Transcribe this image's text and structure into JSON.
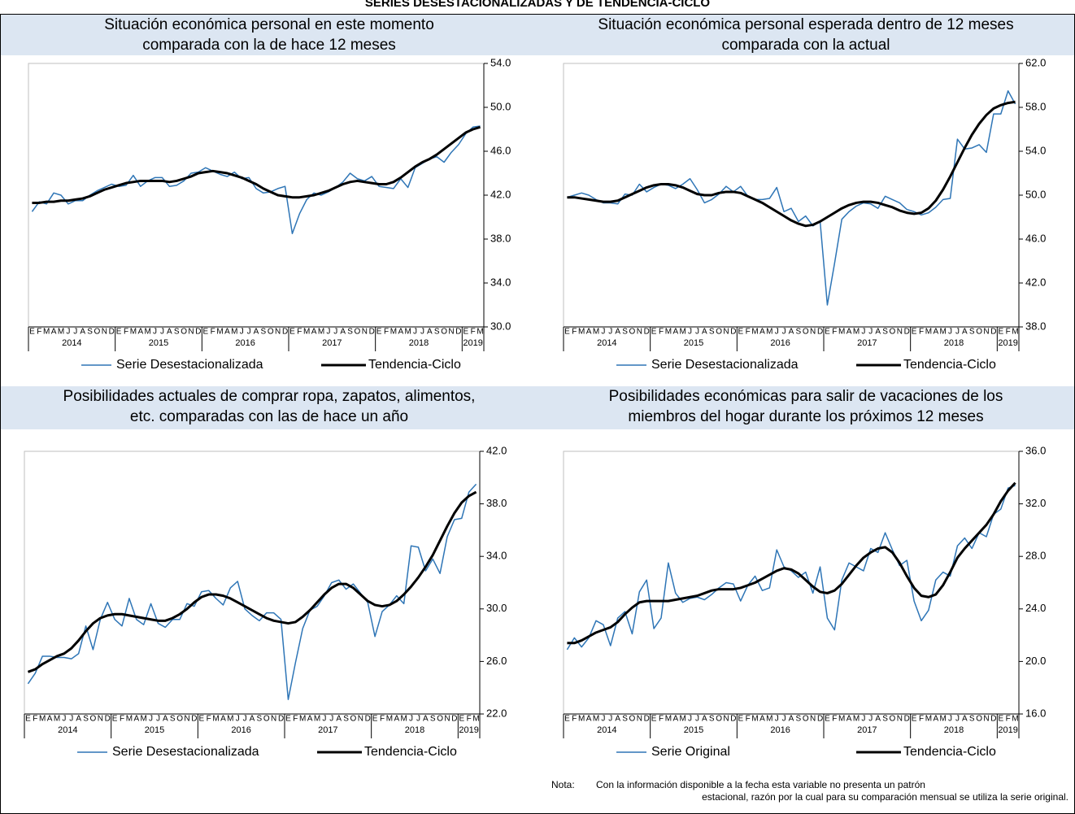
{
  "page_title": "SERIES DESESTACIONALIZADAS Y DE TENDENCIA-CICLO",
  "chart_data": [
    {
      "type": "line",
      "title": [
        "Situación económica personal en este momento",
        "comparada con la de hace 12 meses"
      ],
      "categories": [
        "E",
        "F",
        "M",
        "A",
        "M",
        "J",
        "J",
        "A",
        "S",
        "O",
        "N",
        "D",
        "E",
        "F",
        "M",
        "A",
        "M",
        "J",
        "J",
        "A",
        "S",
        "O",
        "N",
        "D",
        "E",
        "F",
        "M",
        "A",
        "M",
        "J",
        "J",
        "A",
        "S",
        "O",
        "N",
        "D",
        "E",
        "F",
        "M",
        "A",
        "M",
        "J",
        "J",
        "A",
        "S",
        "O",
        "N",
        "D",
        "E",
        "F",
        "M",
        "A",
        "M",
        "J",
        "J",
        "A",
        "S",
        "O",
        "N",
        "D",
        "E",
        "F",
        "M"
      ],
      "years": [
        "2014",
        "2015",
        "2016",
        "2017",
        "2018",
        "2019"
      ],
      "ylim": [
        30,
        54
      ],
      "yticks": [
        {
          "value": 30,
          "label": "30.0"
        },
        {
          "value": 34,
          "label": "34.0"
        },
        {
          "value": 38,
          "label": "38.0"
        },
        {
          "value": 42,
          "label": "42.0"
        },
        {
          "value": 46,
          "label": "46.0"
        },
        {
          "value": 50,
          "label": "50.0"
        },
        {
          "value": 54,
          "label": "54.0"
        }
      ],
      "series": [
        {
          "name": "Serie Desestacionalizada",
          "color": "#2e75b6",
          "values": [
            40.5,
            41.4,
            41.2,
            42.2,
            42.0,
            41.2,
            41.5,
            41.5,
            42.0,
            42.4,
            42.7,
            43.0,
            42.8,
            42.9,
            43.8,
            42.8,
            43.3,
            43.6,
            43.6,
            42.8,
            42.9,
            43.3,
            44.0,
            44.1,
            44.5,
            44.2,
            43.9,
            43.7,
            44.1,
            43.5,
            43.6,
            42.6,
            42.2,
            42.3,
            42.6,
            42.8,
            38.5,
            40.3,
            41.6,
            42.2,
            42.0,
            42.3,
            42.7,
            43.2,
            44.0,
            43.5,
            43.3,
            43.7,
            42.8,
            42.7,
            42.6,
            43.5,
            42.7,
            44.5,
            44.9,
            45.3,
            45.5,
            45.0,
            45.9,
            46.6,
            47.6,
            48.2,
            48.3
          ]
        },
        {
          "name": "Tendencia-Ciclo",
          "color": "#000000",
          "values": [
            41.3,
            41.3,
            41.4,
            41.4,
            41.5,
            41.5,
            41.6,
            41.7,
            41.9,
            42.2,
            42.5,
            42.7,
            42.9,
            43.1,
            43.2,
            43.3,
            43.3,
            43.3,
            43.3,
            43.2,
            43.3,
            43.5,
            43.7,
            44.0,
            44.1,
            44.2,
            44.1,
            44.0,
            43.8,
            43.6,
            43.3,
            43.0,
            42.6,
            42.3,
            42.0,
            41.9,
            41.8,
            41.8,
            41.9,
            42.0,
            42.2,
            42.4,
            42.7,
            43.0,
            43.2,
            43.3,
            43.2,
            43.1,
            43.0,
            43.0,
            43.2,
            43.6,
            44.1,
            44.6,
            45.0,
            45.3,
            45.7,
            46.2,
            46.7,
            47.2,
            47.7,
            48.0,
            48.2
          ]
        }
      ]
    },
    {
      "type": "line",
      "title": [
        "Situación económica personal esperada dentro de 12 meses",
        "comparada con la actual"
      ],
      "categories": [
        "E",
        "F",
        "M",
        "A",
        "M",
        "J",
        "J",
        "A",
        "S",
        "O",
        "N",
        "D",
        "E",
        "F",
        "M",
        "A",
        "M",
        "J",
        "J",
        "A",
        "S",
        "O",
        "N",
        "D",
        "E",
        "F",
        "M",
        "A",
        "M",
        "J",
        "J",
        "A",
        "S",
        "O",
        "N",
        "D",
        "E",
        "F",
        "M",
        "A",
        "M",
        "J",
        "J",
        "A",
        "S",
        "O",
        "N",
        "D",
        "E",
        "F",
        "M",
        "A",
        "M",
        "J",
        "J",
        "A",
        "S",
        "O",
        "N",
        "D",
        "E",
        "F",
        "M"
      ],
      "years": [
        "2014",
        "2015",
        "2016",
        "2017",
        "2018",
        "2019"
      ],
      "ylim": [
        38,
        62
      ],
      "yticks": [
        {
          "value": 38,
          "label": "38.0"
        },
        {
          "value": 42,
          "label": "42.0"
        },
        {
          "value": 46,
          "label": "46.0"
        },
        {
          "value": 50,
          "label": "50.0"
        },
        {
          "value": 54,
          "label": "54.0"
        },
        {
          "value": 58,
          "label": "58.0"
        },
        {
          "value": 62,
          "label": "62.0"
        }
      ],
      "series": [
        {
          "name": "Serie Desestacionalizada",
          "color": "#2e75b6",
          "values": [
            49.8,
            50.0,
            50.2,
            50.0,
            49.6,
            49.3,
            49.3,
            49.2,
            50.1,
            50.0,
            51.0,
            50.3,
            50.7,
            51.0,
            50.9,
            50.6,
            51.0,
            51.5,
            50.5,
            49.3,
            49.6,
            50.1,
            50.8,
            50.3,
            50.8,
            49.9,
            49.6,
            49.6,
            49.7,
            50.7,
            48.5,
            48.8,
            47.6,
            48.1,
            47.2,
            47.6,
            40.0,
            43.8,
            47.8,
            48.5,
            49.0,
            49.3,
            49.2,
            48.8,
            49.9,
            49.6,
            49.3,
            48.7,
            48.5,
            48.2,
            48.4,
            48.9,
            49.6,
            49.7,
            55.1,
            54.2,
            54.3,
            54.6,
            53.9,
            57.4,
            57.4,
            59.5,
            58.3
          ]
        },
        {
          "name": "Tendencia-Ciclo",
          "color": "#000000",
          "values": [
            49.8,
            49.8,
            49.7,
            49.6,
            49.5,
            49.4,
            49.4,
            49.5,
            49.8,
            50.1,
            50.4,
            50.7,
            50.9,
            51.0,
            51.0,
            50.9,
            50.7,
            50.4,
            50.1,
            50.0,
            50.0,
            50.2,
            50.3,
            50.3,
            50.2,
            49.9,
            49.6,
            49.3,
            48.9,
            48.5,
            48.1,
            47.7,
            47.4,
            47.2,
            47.3,
            47.6,
            48.0,
            48.4,
            48.8,
            49.1,
            49.3,
            49.4,
            49.4,
            49.3,
            49.1,
            48.9,
            48.6,
            48.4,
            48.3,
            48.4,
            48.8,
            49.5,
            50.5,
            51.7,
            53.0,
            54.3,
            55.5,
            56.5,
            57.3,
            57.9,
            58.2,
            58.4,
            58.5
          ]
        }
      ]
    },
    {
      "type": "line",
      "title": [
        "Posibilidades actuales de comprar ropa, zapatos, alimentos,",
        "etc. comparadas con las de hace un año"
      ],
      "categories": [
        "E",
        "F",
        "M",
        "A",
        "M",
        "J",
        "J",
        "A",
        "S",
        "O",
        "N",
        "D",
        "E",
        "F",
        "M",
        "A",
        "M",
        "J",
        "J",
        "A",
        "S",
        "O",
        "N",
        "D",
        "E",
        "F",
        "M",
        "A",
        "M",
        "J",
        "J",
        "A",
        "S",
        "O",
        "N",
        "D",
        "E",
        "F",
        "M",
        "A",
        "M",
        "J",
        "J",
        "A",
        "S",
        "O",
        "N",
        "D",
        "E",
        "F",
        "M",
        "A",
        "M",
        "J",
        "J",
        "A",
        "S",
        "O",
        "N",
        "D",
        "E",
        "F",
        "M"
      ],
      "years": [
        "2014",
        "2015",
        "2016",
        "2017",
        "2018",
        "2019"
      ],
      "ylim": [
        22,
        42
      ],
      "yticks": [
        {
          "value": 22,
          "label": "22.0"
        },
        {
          "value": 26,
          "label": "26.0"
        },
        {
          "value": 30,
          "label": "30.0"
        },
        {
          "value": 34,
          "label": "34.0"
        },
        {
          "value": 38,
          "label": "38.0"
        },
        {
          "value": 42,
          "label": "42.0"
        }
      ],
      "series": [
        {
          "name": "Serie Desestacionalizada",
          "color": "#2e75b6",
          "values": [
            24.3,
            25.1,
            26.4,
            26.4,
            26.3,
            26.3,
            26.2,
            26.6,
            28.7,
            26.9,
            29.2,
            30.5,
            29.2,
            28.7,
            30.8,
            29.2,
            28.8,
            30.4,
            28.9,
            28.6,
            29.2,
            29.2,
            30.4,
            30.2,
            31.3,
            31.4,
            30.8,
            30.3,
            31.6,
            32.1,
            30.0,
            29.5,
            29.1,
            29.7,
            29.7,
            29.2,
            23.1,
            25.9,
            28.5,
            29.9,
            30.2,
            31.0,
            32.0,
            32.2,
            31.5,
            31.9,
            31.2,
            30.5,
            27.9,
            29.8,
            30.3,
            31.0,
            30.4,
            34.8,
            34.7,
            32.9,
            33.8,
            32.7,
            35.5,
            36.8,
            36.9,
            38.9,
            39.5
          ]
        },
        {
          "name": "Tendencia-Ciclo",
          "color": "#000000",
          "values": [
            25.2,
            25.4,
            25.8,
            26.1,
            26.4,
            26.6,
            27.0,
            27.6,
            28.3,
            28.9,
            29.3,
            29.5,
            29.6,
            29.6,
            29.5,
            29.4,
            29.3,
            29.2,
            29.1,
            29.1,
            29.3,
            29.6,
            30.0,
            30.5,
            30.9,
            31.1,
            31.1,
            31.0,
            30.8,
            30.5,
            30.2,
            29.9,
            29.6,
            29.3,
            29.1,
            29.0,
            28.9,
            29.0,
            29.4,
            29.9,
            30.5,
            31.1,
            31.6,
            31.9,
            31.9,
            31.6,
            31.1,
            30.6,
            30.3,
            30.2,
            30.3,
            30.6,
            31.1,
            31.7,
            32.4,
            33.2,
            34.1,
            35.2,
            36.3,
            37.3,
            38.1,
            38.6,
            38.9
          ]
        }
      ]
    },
    {
      "type": "line",
      "title": [
        "Posibilidades económicas para salir de vacaciones de los",
        "miembros del hogar durante los próximos 12 meses"
      ],
      "categories": [
        "E",
        "F",
        "M",
        "A",
        "M",
        "J",
        "J",
        "A",
        "S",
        "O",
        "N",
        "D",
        "E",
        "F",
        "M",
        "A",
        "M",
        "J",
        "J",
        "A",
        "S",
        "O",
        "N",
        "D",
        "E",
        "F",
        "M",
        "A",
        "M",
        "J",
        "J",
        "A",
        "S",
        "O",
        "N",
        "D",
        "E",
        "F",
        "M",
        "A",
        "M",
        "J",
        "J",
        "A",
        "S",
        "O",
        "N",
        "D",
        "E",
        "F",
        "M",
        "A",
        "M",
        "J",
        "J",
        "A",
        "S",
        "O",
        "N",
        "D",
        "E",
        "F",
        "M"
      ],
      "years": [
        "2014",
        "2015",
        "2016",
        "2017",
        "2018",
        "2019"
      ],
      "ylim": [
        16,
        36
      ],
      "yticks": [
        {
          "value": 16,
          "label": "16.0"
        },
        {
          "value": 20,
          "label": "20.0"
        },
        {
          "value": 24,
          "label": "24.0"
        },
        {
          "value": 28,
          "label": "28.0"
        },
        {
          "value": 32,
          "label": "32.0"
        },
        {
          "value": 36,
          "label": "36.0"
        }
      ],
      "series": [
        {
          "name": "Serie Original",
          "color": "#2e75b6",
          "values": [
            20.9,
            21.8,
            21.1,
            21.8,
            23.1,
            22.8,
            21.2,
            23.3,
            23.8,
            22.1,
            25.3,
            26.2,
            22.5,
            23.3,
            27.5,
            25.2,
            24.5,
            24.8,
            24.9,
            24.7,
            25.1,
            25.6,
            26.0,
            25.9,
            24.6,
            25.8,
            26.5,
            25.4,
            25.6,
            28.5,
            27.2,
            26.9,
            26.4,
            26.8,
            25.2,
            27.2,
            23.3,
            22.4,
            26.2,
            27.5,
            27.2,
            26.9,
            28.6,
            28.3,
            29.8,
            28.5,
            27.3,
            27.7,
            24.6,
            23.1,
            23.9,
            26.2,
            26.8,
            26.5,
            28.8,
            29.4,
            28.6,
            29.8,
            29.5,
            31.2,
            31.6,
            33.2,
            33.4
          ]
        },
        {
          "name": "Tendencia-Ciclo",
          "color": "#000000",
          "values": [
            21.4,
            21.4,
            21.6,
            21.9,
            22.2,
            22.4,
            22.6,
            23.0,
            23.6,
            24.1,
            24.5,
            24.6,
            24.6,
            24.6,
            24.6,
            24.7,
            24.8,
            24.9,
            25.0,
            25.2,
            25.4,
            25.5,
            25.5,
            25.5,
            25.6,
            25.8,
            26.0,
            26.3,
            26.6,
            26.9,
            27.1,
            27.0,
            26.7,
            26.2,
            25.7,
            25.3,
            25.2,
            25.4,
            25.9,
            26.6,
            27.3,
            27.9,
            28.3,
            28.6,
            28.7,
            28.3,
            27.5,
            26.5,
            25.6,
            25.0,
            24.9,
            25.1,
            25.8,
            26.8,
            27.9,
            28.6,
            29.2,
            29.8,
            30.4,
            31.2,
            32.2,
            33.0,
            33.6
          ]
        }
      ],
      "note": {
        "label": "Nota:",
        "lines": [
          "Con la información disponible a la fecha esta variable no presenta un patrón",
          "estacional, razón por la cual para su comparación mensual se utiliza la serie original."
        ]
      }
    }
  ]
}
